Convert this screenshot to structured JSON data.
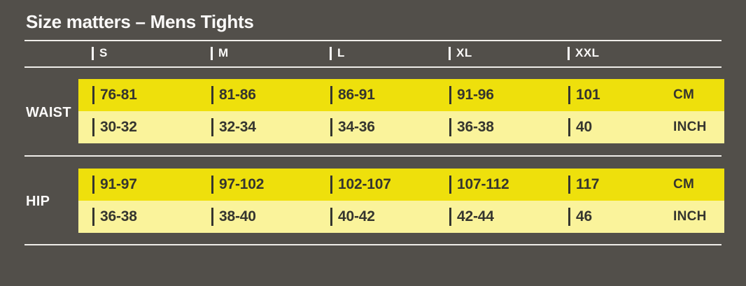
{
  "colors": {
    "background": "#524F4A",
    "bright_yellow": "#EEE00C",
    "light_yellow": "#FAF39B",
    "dark_text": "#35352F",
    "light_text": "#FBFAF9",
    "rule": "#EFEDE9"
  },
  "chart_data": {
    "type": "table",
    "title": "Size matters – Mens Tights",
    "size_columns": [
      "S",
      "M",
      "L",
      "XL",
      "XXL"
    ],
    "sections": [
      {
        "label": "WAIST",
        "rows": [
          {
            "unit": "CM",
            "values": [
              "76-81",
              "81-86",
              "86-91",
              "91-96",
              "101"
            ]
          },
          {
            "unit": "INCH",
            "values": [
              "30-32",
              "32-34",
              "34-36",
              "36-38",
              "40"
            ]
          }
        ]
      },
      {
        "label": "HIP",
        "rows": [
          {
            "unit": "CM",
            "values": [
              "91-97",
              "97-102",
              "102-107",
              "107-112",
              "117"
            ]
          },
          {
            "unit": "INCH",
            "values": [
              "36-38",
              "38-40",
              "40-42",
              "42-44",
              "46"
            ]
          }
        ]
      }
    ]
  }
}
